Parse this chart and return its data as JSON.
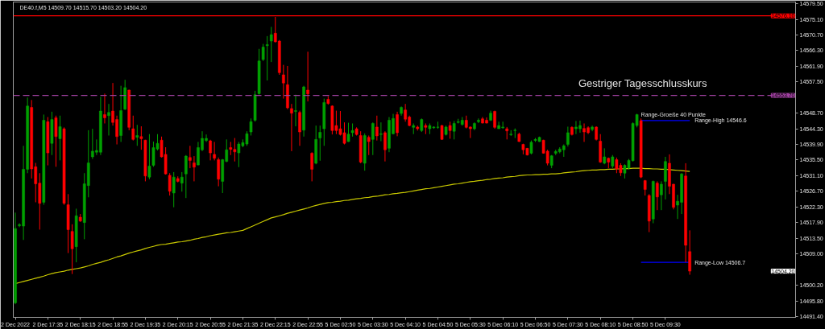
{
  "chart_data": {
    "type": "candlestick",
    "title": "DE40.f,M5  14509.70 14515.70 14503.20 14504.20",
    "categories": [
      "2 Dec 2022",
      null,
      null,
      null,
      null,
      null,
      null,
      null,
      "2 Dec 17:35",
      null,
      null,
      null,
      null,
      null,
      null,
      null,
      "2 Dec 18:15",
      null,
      null,
      null,
      null,
      null,
      null,
      null,
      "2 Dec 18:55",
      null,
      null,
      null,
      null,
      null,
      null,
      null,
      "2 Dec 19:35",
      null,
      null,
      null,
      null,
      null,
      null,
      null,
      "2 Dec 20:15",
      null,
      null,
      null,
      null,
      null,
      null,
      null,
      "2 Dec 20:55",
      null,
      null,
      null,
      null,
      null,
      null,
      null,
      "2 Dec 21:35",
      null,
      null,
      null,
      null,
      null,
      null,
      null,
      "2 Dec 22:15",
      null,
      null,
      null,
      null,
      null,
      null,
      null,
      "2 Dec 22:55",
      null,
      null,
      null,
      null,
      null,
      null,
      null,
      "5 Dec 02:50",
      null,
      null,
      null,
      null,
      null,
      null,
      null,
      "5 Dec 03:30",
      null,
      null,
      null,
      null,
      null,
      null,
      null,
      "5 Dec 04:10",
      null,
      null,
      null,
      null,
      null,
      null,
      null,
      "5 Dec 04:50",
      null,
      null,
      null,
      null,
      null,
      null,
      null,
      "5 Dec 05:30",
      null,
      null,
      null,
      null,
      null,
      null,
      null,
      "5 Dec 06:10",
      null,
      null,
      null,
      null,
      null,
      null,
      null,
      "5 Dec 06:50",
      null,
      null,
      null,
      null,
      null,
      null,
      null,
      "5 Dec 07:30",
      null,
      null,
      null,
      null,
      null,
      null,
      null,
      "5 Dec 08:10",
      null,
      null,
      null,
      null,
      null,
      null,
      null,
      "5 Dec 08:50",
      null,
      null,
      null,
      null,
      null,
      null,
      null,
      "5 Dec 09:30",
      null,
      null,
      null,
      null,
      null,
      null
    ],
    "ohlc": [
      [
        14495.3,
        14520.7,
        14494.9,
        14516.2
      ],
      [
        14517.0,
        14517.7,
        14516.6,
        14517.3
      ],
      [
        14516.9,
        14539.5,
        14513.0,
        14532.9
      ],
      [
        14532.9,
        14553.1,
        14531.8,
        14550.7
      ],
      [
        14550.3,
        14552.4,
        14530.3,
        14533.0
      ],
      [
        14533.6,
        14534.7,
        14523.6,
        14528.8
      ],
      [
        14529.0,
        14531.8,
        14515.9,
        14523.3
      ],
      [
        14523.6,
        14548.3,
        14522.9,
        14546.7
      ],
      [
        14546.3,
        14547.6,
        14534.0,
        14537.5
      ],
      [
        14540.2,
        14549.1,
        14536.9,
        14546.9
      ],
      [
        14547.4,
        14548.0,
        14533.6,
        14542.1
      ],
      [
        14541.5,
        14548.0,
        14535.4,
        14544.9
      ],
      [
        14544.3,
        14544.7,
        14522.9,
        14523.3
      ],
      [
        14522.9,
        14525.9,
        14509.3,
        14515.9
      ],
      [
        14515.4,
        14517.4,
        14503.4,
        14510.5
      ],
      [
        14511.1,
        14521.8,
        14506.7,
        14519.8
      ],
      [
        14519.4,
        14520.3,
        14518.1,
        14518.3
      ],
      [
        14517.9,
        14531.8,
        14513.2,
        14528.8
      ],
      [
        14528.3,
        14543.9,
        14525.0,
        14534.7
      ],
      [
        14536.4,
        14544.3,
        14535.8,
        14538.0
      ],
      [
        14537.7,
        14541.3,
        14536.9,
        14538.2
      ],
      [
        14537.7,
        14553.3,
        14536.9,
        14549.3
      ],
      [
        14548.3,
        14554.2,
        14545.8,
        14547.4
      ],
      [
        14548.0,
        14551.3,
        14542.4,
        14548.9
      ],
      [
        14549.3,
        14557.2,
        14545.2,
        14546.1
      ],
      [
        14546.9,
        14548.0,
        14539.9,
        14542.1
      ],
      [
        14542.4,
        14556.4,
        14540.6,
        14549.4
      ],
      [
        14549.8,
        14558.1,
        14549.6,
        14555.9
      ],
      [
        14555.2,
        14555.3,
        14543.9,
        14544.7
      ],
      [
        14544.3,
        14548.0,
        14541.0,
        14541.3
      ],
      [
        14541.9,
        14545.4,
        14539.5,
        14542.4
      ],
      [
        14542.1,
        14545.0,
        14538.4,
        14541.5
      ],
      [
        14541.1,
        14541.2,
        14529.5,
        14531.0
      ],
      [
        14530.7,
        14542.8,
        14530.1,
        14533.8
      ],
      [
        14534.0,
        14540.7,
        14533.6,
        14539.0
      ],
      [
        14538.6,
        14542.8,
        14538.2,
        14540.2
      ],
      [
        14541.1,
        14542.1,
        14536.2,
        14536.4
      ],
      [
        14537.1,
        14539.1,
        14531.4,
        14531.6
      ],
      [
        14531.2,
        14531.8,
        14525.5,
        14526.7
      ],
      [
        14526.2,
        14532.1,
        14522.2,
        14530.7
      ],
      [
        14530.3,
        14530.9,
        14529.2,
        14529.5
      ],
      [
        14529.0,
        14532.1,
        14526.6,
        14530.7
      ],
      [
        14531.6,
        14536.9,
        14524.8,
        14536.6
      ],
      [
        14536.2,
        14539.5,
        14533.2,
        14535.4
      ],
      [
        14534.7,
        14536.6,
        14529.5,
        14533.5
      ],
      [
        14534.1,
        14540.6,
        14534.0,
        14539.0
      ],
      [
        14538.4,
        14543.6,
        14538.0,
        14541.6
      ],
      [
        14541.0,
        14542.7,
        14540.6,
        14541.6
      ],
      [
        14540.9,
        14541.2,
        14535.4,
        14537.5
      ],
      [
        14537.1,
        14540.6,
        14535.4,
        14536.0
      ],
      [
        14535.6,
        14536.2,
        14528.1,
        14530.1
      ],
      [
        14529.5,
        14535.8,
        14526.2,
        14535.6
      ],
      [
        14535.1,
        14541.3,
        14534.9,
        14538.4
      ],
      [
        14539.0,
        14540.6,
        14536.9,
        14538.5
      ],
      [
        14538.5,
        14541.7,
        14535.1,
        14537.8
      ],
      [
        14537.5,
        14540.6,
        14533.5,
        14540.0
      ],
      [
        14539.5,
        14541.3,
        14539.1,
        14540.4
      ],
      [
        14540.0,
        14543.6,
        14539.5,
        14542.9
      ],
      [
        14543.4,
        14547.2,
        14542.4,
        14546.3
      ],
      [
        14546.7,
        14555.0,
        14546.3,
        14553.9
      ],
      [
        14554.2,
        14566.8,
        14553.9,
        14563.4
      ],
      [
        14563.8,
        14568.2,
        14563.4,
        14567.3
      ],
      [
        14567.7,
        14570.4,
        14557.9,
        14568.0
      ],
      [
        14569.0,
        14573.0,
        14563.1,
        14570.8
      ],
      [
        14571.2,
        14575.8,
        14568.6,
        14568.8
      ],
      [
        14569.0,
        14569.3,
        14559.5,
        14560.1
      ],
      [
        14559.5,
        14562.3,
        14552.8,
        14557.2
      ],
      [
        14556.7,
        14562.0,
        14549.8,
        14550.2
      ],
      [
        14550.0,
        14551.3,
        14538.0,
        14548.7
      ],
      [
        14549.2,
        14553.9,
        14545.0,
        14549.4
      ],
      [
        14548.9,
        14549.4,
        14539.5,
        14543.4
      ],
      [
        14543.9,
        14556.4,
        14542.1,
        14556.1
      ],
      [
        14555.2,
        14566.0,
        14552.0,
        14554.1
      ],
      [
        14537.4,
        14537.7,
        14529.5,
        14532.9
      ],
      [
        14534.6,
        14545.2,
        14534.3,
        14541.3
      ],
      [
        14541.7,
        14545.2,
        14535.3,
        14543.3
      ],
      [
        14544.3,
        14552.8,
        14539.5,
        14551.7
      ],
      [
        14552.6,
        14553.5,
        14551.1,
        14551.4
      ],
      [
        14550.7,
        14550.9,
        14542.7,
        14543.8
      ],
      [
        14545.2,
        14549.4,
        14542.8,
        14543.8
      ],
      [
        14544.3,
        14549.3,
        14542.4,
        14542.7
      ],
      [
        14543.2,
        14546.1,
        14539.9,
        14540.2
      ],
      [
        14540.7,
        14546.0,
        14540.6,
        14542.8
      ],
      [
        14543.2,
        14545.8,
        14542.1,
        14543.8
      ],
      [
        14544.3,
        14544.7,
        14542.4,
        14542.7
      ],
      [
        14542.4,
        14543.6,
        14534.6,
        14534.9
      ],
      [
        14534.6,
        14543.0,
        14532.5,
        14542.4
      ],
      [
        14541.9,
        14542.4,
        14536.9,
        14540.7
      ],
      [
        14541.3,
        14546.1,
        14536.9,
        14545.8
      ],
      [
        14544.8,
        14548.0,
        14541.0,
        14542.3
      ],
      [
        14542.7,
        14546.1,
        14540.8,
        14542.9
      ],
      [
        14543.2,
        14543.6,
        14535.1,
        14538.4
      ],
      [
        14538.8,
        14547.6,
        14537.7,
        14546.7
      ],
      [
        14542.9,
        14548.5,
        14542.7,
        14547.2
      ],
      [
        14548.3,
        14549.1,
        14542.2,
        14543.2
      ],
      [
        14548.6,
        14550.6,
        14548.0,
        14550.3
      ],
      [
        14549.6,
        14551.3,
        14546.3,
        14547.0
      ],
      [
        14547.6,
        14548.0,
        14545.0,
        14545.2
      ],
      [
        14544.7,
        14545.8,
        14542.8,
        14545.2
      ],
      [
        14544.8,
        14545.2,
        14543.8,
        14544.3
      ],
      [
        14543.8,
        14547.2,
        14543.4,
        14546.9
      ],
      [
        14545.2,
        14545.8,
        14542.8,
        14544.7
      ],
      [
        14544.3,
        14545.8,
        14542.8,
        14545.2
      ],
      [
        14544.6,
        14545.0,
        14544.3,
        14544.8
      ],
      [
        14544.7,
        14546.3,
        14544.3,
        14544.8
      ],
      [
        14545.2,
        14545.4,
        14541.2,
        14541.3
      ],
      [
        14542.7,
        14545.2,
        14542.4,
        14544.8
      ],
      [
        14545.2,
        14546.3,
        14541.5,
        14543.8
      ],
      [
        14543.6,
        14546.5,
        14541.3,
        14545.8
      ],
      [
        14546.1,
        14547.1,
        14545.8,
        14546.3
      ],
      [
        14545.5,
        14547.6,
        14545.2,
        14546.7
      ],
      [
        14546.7,
        14548.0,
        14544.4,
        14544.7
      ],
      [
        14544.8,
        14545.0,
        14541.7,
        14544.3
      ],
      [
        14544.3,
        14546.1,
        14543.9,
        14545.8
      ],
      [
        14546.3,
        14547.2,
        14545.9,
        14546.7
      ],
      [
        14547.1,
        14547.6,
        14545.8,
        14545.9
      ],
      [
        14546.7,
        14547.5,
        14545.8,
        14545.9
      ],
      [
        14546.7,
        14549.4,
        14546.5,
        14548.7
      ],
      [
        14549.2,
        14549.4,
        14544.3,
        14544.7
      ],
      [
        14544.3,
        14546.3,
        14544.3,
        14545.2
      ],
      [
        14544.6,
        14546.3,
        14544.3,
        14544.8
      ],
      [
        14544.3,
        14544.8,
        14541.3,
        14543.7
      ],
      [
        14542.6,
        14543.9,
        14542.3,
        14542.8
      ],
      [
        14543.8,
        14544.4,
        14541.7,
        14543.9
      ],
      [
        14542.8,
        14543.2,
        14540.6,
        14540.7
      ],
      [
        14539.9,
        14540.1,
        14537.1,
        14538.4
      ],
      [
        14538.8,
        14538.9,
        14536.8,
        14536.9
      ],
      [
        14537.4,
        14541.0,
        14537.1,
        14540.5
      ],
      [
        14541.0,
        14541.7,
        14540.6,
        14541.3
      ],
      [
        14540.7,
        14542.1,
        14540.6,
        14541.9
      ],
      [
        14541.1,
        14541.2,
        14537.3,
        14537.4
      ],
      [
        14538.0,
        14538.4,
        14534.0,
        14534.6
      ],
      [
        14534.0,
        14536.9,
        14533.2,
        14536.7
      ],
      [
        14537.4,
        14538.4,
        14536.9,
        14537.9
      ],
      [
        14537.8,
        14539.1,
        14537.4,
        14538.6
      ],
      [
        14538.4,
        14539.9,
        14536.4,
        14539.5
      ],
      [
        14539.9,
        14544.9,
        14539.3,
        14543.2
      ],
      [
        14544.7,
        14545.0,
        14542.4,
        14542.7
      ],
      [
        14544.3,
        14546.5,
        14542.8,
        14544.8
      ],
      [
        14544.3,
        14546.6,
        14543.2,
        14545.2
      ],
      [
        14544.4,
        14545.8,
        14540.6,
        14543.4
      ],
      [
        14544.6,
        14545.0,
        14542.8,
        14543.2
      ],
      [
        14544.1,
        14545.2,
        14543.6,
        14544.8
      ],
      [
        14544.8,
        14545.0,
        14541.0,
        14541.3
      ],
      [
        14540.8,
        14542.8,
        14534.7,
        14534.9
      ],
      [
        14534.6,
        14538.8,
        14534.3,
        14536.4
      ],
      [
        14536.0,
        14536.2,
        14533.2,
        14534.9
      ],
      [
        14533.8,
        14536.9,
        14533.2,
        14536.4
      ],
      [
        14535.6,
        14536.2,
        14531.8,
        14533.0
      ],
      [
        14534.0,
        14534.6,
        14531.0,
        14531.9
      ],
      [
        14531.8,
        14534.3,
        14530.3,
        14534.0
      ],
      [
        14533.2,
        14535.8,
        14532.9,
        14535.4
      ],
      [
        14535.3,
        14546.1,
        14535.1,
        14545.8
      ],
      [
        14545.2,
        14548.5,
        14544.7,
        14548.3
      ],
      [
        14546.6,
        14547.2,
        14530.4,
        14530.7
      ],
      [
        14529.7,
        14529.9,
        14525.5,
        14527.2
      ],
      [
        14525.5,
        14525.9,
        14515.2,
        14518.3
      ],
      [
        14518.9,
        14529.7,
        14517.7,
        14529.5
      ],
      [
        14529.0,
        14529.5,
        14521.4,
        14525.1
      ],
      [
        14525.7,
        14529.5,
        14521.4,
        14528.7
      ],
      [
        14529.5,
        14536.4,
        14524.4,
        14535.1
      ],
      [
        14534.6,
        14537.1,
        14525.9,
        14528.1
      ],
      [
        14528.7,
        14528.8,
        14521.6,
        14522.2
      ],
      [
        14522.8,
        14525.7,
        14518.9,
        14523.9
      ],
      [
        14523.6,
        14531.8,
        14520.3,
        14531.6
      ],
      [
        14531.0,
        14534.6,
        14506.7,
        14511.5
      ],
      [
        14509.7,
        14515.7,
        14503.2,
        14504.2
      ]
    ],
    "colors": [
      "#00a000",
      "#00a000",
      "#00a000",
      "#00a000",
      "#ff0000",
      "#ff0000",
      "#ff0000",
      "#00a000",
      "#ff0000",
      "#00a000",
      "#ff0000",
      "#00a000",
      "#ff0000",
      "#ff0000",
      "#ff0000",
      "#00a000",
      "#ff0000",
      "#00a000",
      "#00a000",
      "#00a000",
      "#00a000",
      "#00a000",
      "#ff0000",
      "#00a000",
      "#ff0000",
      "#ff0000",
      "#00a000",
      "#00a000",
      "#ff0000",
      "#ff0000",
      "#00a000",
      "#ff0000",
      "#ff0000",
      "#00a000",
      "#00a000",
      "#00a000",
      "#ff0000",
      "#ff0000",
      "#ff0000",
      "#00a000",
      "#ff0000",
      "#00a000",
      "#00a000",
      "#ff0000",
      "#ff0000",
      "#00a000",
      "#00a000",
      "#00a000",
      "#ff0000",
      "#ff0000",
      "#ff0000",
      "#00a000",
      "#00a000",
      "#ff0000",
      "#ff0000",
      "#00a000",
      "#00a000",
      "#00a000",
      "#00a000",
      "#00a000",
      "#00a000",
      "#00a000",
      "#00a000",
      "#00a000",
      "#ff0000",
      "#ff0000",
      "#ff0000",
      "#ff0000",
      "#ff0000",
      "#00a000",
      "#ff0000",
      "#00a000",
      "#ff0000",
      "#ff0000",
      "#00a000",
      "#00a000",
      "#00a000",
      "#ff0000",
      "#ff0000",
      "#ff0000",
      "#ff0000",
      "#ff0000",
      "#00a000",
      "#00a000",
      "#ff0000",
      "#ff0000",
      "#00a000",
      "#ff0000",
      "#00a000",
      "#ff0000",
      "#00a000",
      "#ff0000",
      "#00a000",
      "#00a000",
      "#ff0000",
      "#00a000",
      "#ff0000",
      "#ff0000",
      "#00a000",
      "#ff0000",
      "#00a000",
      "#ff0000",
      "#00a000",
      "#00a000",
      "#00a000",
      "#ff0000",
      "#00a000",
      "#ff0000",
      "#00a000",
      "#00a000",
      "#00a000",
      "#ff0000",
      "#ff0000",
      "#00a000",
      "#00a000",
      "#ff0000",
      "#ff0000",
      "#00a000",
      "#ff0000",
      "#00a000",
      "#00a000",
      "#ff0000",
      "#00a000",
      "#00a000",
      "#ff0000",
      "#ff0000",
      "#ff0000",
      "#00a000",
      "#00a000",
      "#00a000",
      "#ff0000",
      "#ff0000",
      "#00a000",
      "#00a000",
      "#00a000",
      "#00a000",
      "#00a000",
      "#ff0000",
      "#00a000",
      "#00a000",
      "#ff0000",
      "#ff0000",
      "#00a000",
      "#ff0000",
      "#ff0000",
      "#00a000",
      "#ff0000",
      "#00a000",
      "#ff0000",
      "#ff0000",
      "#00a000",
      "#00a000",
      "#00a000",
      "#00a000",
      "#ff0000",
      "#ff0000",
      "#ff0000",
      "#00a000",
      "#ff0000",
      "#00a000",
      "#00a000",
      "#ff0000",
      "#ff0000",
      "#00a000",
      "#00a000",
      "#ff0000",
      "#ff0000"
    ],
    "series": [
      {
        "type": "line",
        "color": "#c8c800",
        "values": [
          14500.7,
          14501.0,
          14501.3,
          14501.6,
          14501.9,
          14502.2,
          14502.5,
          14502.8,
          14503.2,
          14503.5,
          14503.8,
          14504.0,
          14504.2,
          14504.5,
          14504.7,
          14504.9,
          14505.1,
          14505.4,
          14505.7,
          14506.1,
          14506.4,
          14506.7,
          14507.1,
          14507.4,
          14507.8,
          14508.2,
          14508.5,
          14508.9,
          14509.3,
          14509.6,
          14509.9,
          14510.2,
          14510.6,
          14510.9,
          14511.2,
          14511.5,
          14511.7,
          14511.8,
          14512.0,
          14512.2,
          14512.4,
          14512.5,
          14512.7,
          14512.9,
          14513.2,
          14513.4,
          14513.7,
          14513.9,
          14514.2,
          14514.4,
          14514.6,
          14514.8,
          14515.0,
          14515.1,
          14515.3,
          14515.5,
          14515.7,
          14516.2,
          14516.7,
          14517.2,
          14517.7,
          14518.2,
          14518.7,
          14519.2,
          14519.5,
          14519.8,
          14520.1,
          14520.5,
          14520.8,
          14521.1,
          14521.4,
          14521.7,
          14522.0,
          14522.4,
          14522.7,
          14523.0,
          14523.3,
          14523.5,
          14523.6,
          14523.8,
          14523.9,
          14524.1,
          14524.2,
          14524.4,
          14524.6,
          14524.7,
          14524.9,
          14525.0,
          14525.2,
          14525.3,
          14525.5,
          14525.7,
          14525.8,
          14526.0,
          14526.1,
          14526.3,
          14526.4,
          14526.6,
          14526.8,
          14527.0,
          14527.2,
          14527.4,
          14527.5,
          14527.7,
          14527.9,
          14528.1,
          14528.3,
          14528.5,
          14528.7,
          14528.8,
          14529.0,
          14529.2,
          14529.4,
          14529.5,
          14529.7,
          14529.8,
          14530.0,
          14530.1,
          14530.3,
          14530.4,
          14530.5,
          14530.7,
          14530.8,
          14530.9,
          14531.1,
          14531.2,
          14531.3,
          14531.3,
          14531.4,
          14531.4,
          14531.5,
          14531.5,
          14531.6,
          14531.6,
          14531.7,
          14531.9,
          14532.0,
          14532.1,
          14532.2,
          14532.4,
          14532.5,
          14532.6,
          14532.7,
          14532.7,
          14532.8,
          14532.8,
          14532.9,
          14532.9,
          14533.0,
          14533.0,
          14533.1,
          14533.1,
          14533.2,
          14533.2,
          14533.2,
          14533.1,
          14533.1,
          14533.0,
          14533.0,
          14532.9,
          14532.9,
          14532.8,
          14532.7,
          14532.6,
          14532.5,
          14532.4,
          14532.3
        ]
      },
      {
        "type": "line",
        "name": "Range-High 14546.6",
        "color": "#0000ff",
        "values": [
          null,
          null,
          null,
          null,
          null,
          null,
          null,
          null,
          null,
          null,
          null,
          null,
          null,
          null,
          null,
          null,
          null,
          null,
          null,
          null,
          null,
          null,
          null,
          null,
          null,
          null,
          null,
          null,
          null,
          null,
          null,
          null,
          null,
          null,
          null,
          null,
          null,
          null,
          null,
          null,
          null,
          null,
          null,
          null,
          null,
          null,
          null,
          null,
          null,
          null,
          null,
          null,
          null,
          null,
          null,
          null,
          null,
          null,
          null,
          null,
          null,
          null,
          null,
          null,
          null,
          null,
          null,
          null,
          null,
          null,
          null,
          null,
          null,
          null,
          null,
          null,
          null,
          null,
          null,
          null,
          null,
          null,
          null,
          null,
          null,
          null,
          null,
          null,
          null,
          null,
          null,
          null,
          null,
          null,
          null,
          null,
          null,
          null,
          null,
          null,
          null,
          null,
          null,
          null,
          null,
          null,
          null,
          null,
          null,
          null,
          null,
          null,
          null,
          null,
          null,
          null,
          null,
          null,
          null,
          null,
          null,
          null,
          null,
          null,
          null,
          null,
          null,
          null,
          null,
          null,
          null,
          null,
          null,
          null,
          null,
          null,
          null,
          null,
          null,
          null,
          null,
          null,
          null,
          null,
          null,
          null,
          null,
          null,
          null,
          null,
          null,
          null,
          null,
          null,
          14546.6,
          14546.6,
          14546.6,
          14546.6,
          14546.6,
          14546.6,
          14546.6,
          14546.6,
          14546.6,
          14546.6,
          14546.6,
          14546.6,
          14546.6
        ]
      },
      {
        "type": "line",
        "name": "Range-Low 14506.7",
        "color": "#0000ff",
        "values": [
          null,
          null,
          null,
          null,
          null,
          null,
          null,
          null,
          null,
          null,
          null,
          null,
          null,
          null,
          null,
          null,
          null,
          null,
          null,
          null,
          null,
          null,
          null,
          null,
          null,
          null,
          null,
          null,
          null,
          null,
          null,
          null,
          null,
          null,
          null,
          null,
          null,
          null,
          null,
          null,
          null,
          null,
          null,
          null,
          null,
          null,
          null,
          null,
          null,
          null,
          null,
          null,
          null,
          null,
          null,
          null,
          null,
          null,
          null,
          null,
          null,
          null,
          null,
          null,
          null,
          null,
          null,
          null,
          null,
          null,
          null,
          null,
          null,
          null,
          null,
          null,
          null,
          null,
          null,
          null,
          null,
          null,
          null,
          null,
          null,
          null,
          null,
          null,
          null,
          null,
          null,
          null,
          null,
          null,
          null,
          null,
          null,
          null,
          null,
          null,
          null,
          null,
          null,
          null,
          null,
          null,
          null,
          null,
          null,
          null,
          null,
          null,
          null,
          null,
          null,
          null,
          null,
          null,
          null,
          null,
          null,
          null,
          null,
          null,
          null,
          null,
          null,
          null,
          null,
          null,
          null,
          null,
          null,
          null,
          null,
          null,
          null,
          null,
          null,
          null,
          null,
          null,
          null,
          null,
          null,
          null,
          null,
          null,
          null,
          null,
          null,
          null,
          null,
          null,
          14506.7,
          14506.7,
          14506.7,
          14506.7,
          14506.7,
          14506.7,
          14506.7,
          14506.7,
          14506.7,
          14506.7,
          14506.7,
          14506.7,
          14506.7
        ]
      }
    ],
    "ref_lines": [
      {
        "axis": "y",
        "value": 14576.1,
        "label": "14576.10",
        "color": "#ff0000",
        "line_style": "solid"
      },
      {
        "axis": "y",
        "value": 14553.7,
        "label": "14553.70",
        "color": "#a040a0",
        "line_style": "dashed"
      }
    ],
    "annotations": [
      "Gestriger Tagesschlusskurs",
      "Range-Groeße 40 Punkte",
      "14504.20"
    ],
    "ylim": [
      14491.2,
      14580.0
    ],
    "yticks": [
      {
        "value": 14491.4,
        "label": "14491.40"
      },
      {
        "value": 14495.8,
        "label": "14495.80"
      },
      {
        "value": 14500.2,
        "label": "14500.20"
      },
      {
        "value": 14509.0,
        "label": "14509.00"
      },
      {
        "value": 14513.5,
        "label": "14513.50"
      },
      {
        "value": 14517.9,
        "label": "14517.90"
      },
      {
        "value": 14522.3,
        "label": "14522.30"
      },
      {
        "value": 14526.7,
        "label": "14526.70"
      },
      {
        "value": 14531.1,
        "label": "14531.10"
      },
      {
        "value": 14535.5,
        "label": "14535.50"
      },
      {
        "value": 14539.9,
        "label": "14539.90"
      },
      {
        "value": 14544.3,
        "label": "14544.30"
      },
      {
        "value": 14548.7,
        "label": "14548.70"
      },
      {
        "value": 14557.5,
        "label": "14557.50"
      },
      {
        "value": 14561.9,
        "label": "14561.90"
      },
      {
        "value": 14566.3,
        "label": "14566.30"
      },
      {
        "value": 14570.7,
        "label": "14570.70"
      },
      {
        "value": 14575.1,
        "label": "14575.10"
      },
      {
        "value": 14579.5,
        "label": "14579.50"
      }
    ],
    "grid": false
  }
}
